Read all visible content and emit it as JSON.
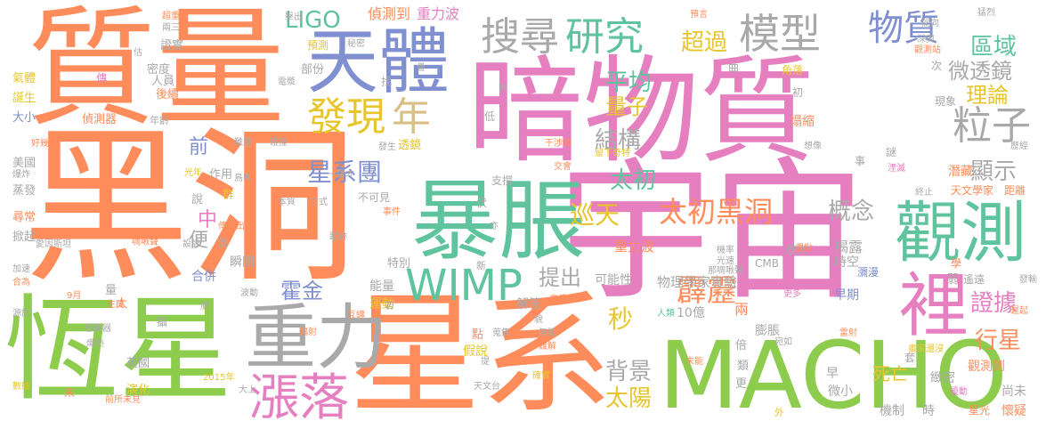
{
  "words": [
    {
      "text": "暗物質",
      "color": "#e57fc0"
    },
    {
      "text": "黑洞",
      "color": "#ff8c5a"
    },
    {
      "text": "質量",
      "color": "#ff8c5a"
    },
    {
      "text": "宇宙",
      "color": "#e57fc0"
    },
    {
      "text": "星系",
      "color": "#ff8c5a"
    },
    {
      "text": "恆星",
      "color": "#8ecc4e"
    },
    {
      "text": "MACHO",
      "color": "#8ecc4e"
    },
    {
      "text": "暴脹",
      "color": "#5fc49e"
    },
    {
      "text": "觀測",
      "color": "#5fc49e"
    },
    {
      "text": "天體",
      "color": "#7f8fcf"
    },
    {
      "text": "重力",
      "color": "#a9a9a9"
    },
    {
      "text": "裡",
      "color": "#e57fc0"
    },
    {
      "text": "漲落",
      "color": "#e57fc0"
    },
    {
      "text": "WIMP",
      "color": "#5fc49e"
    },
    {
      "text": "搜尋",
      "color": "#a9a9a9"
    },
    {
      "text": "研究",
      "color": "#5fc49e"
    },
    {
      "text": "模型",
      "color": "#a9a9a9"
    },
    {
      "text": "物質",
      "color": "#7f8fcf"
    },
    {
      "text": "發現",
      "color": "#e8c52d"
    },
    {
      "text": "年",
      "color": "#d9bf86"
    },
    {
      "text": "粒子",
      "color": "#a9a9a9"
    },
    {
      "text": "太初黑洞",
      "color": "#ff8c5a"
    },
    {
      "text": "霹靂",
      "color": "#ff8c5a"
    },
    {
      "text": "LIGO",
      "color": "#5fc49e"
    },
    {
      "text": "超過",
      "color": "#e8c52d"
    },
    {
      "text": "區域",
      "color": "#5fc49e"
    },
    {
      "text": "微透鏡",
      "color": "#a9a9a9"
    },
    {
      "text": "理論",
      "color": "#e8c52d"
    },
    {
      "text": "平均",
      "color": "#5fc49e"
    },
    {
      "text": "量子",
      "color": "#e8c52d"
    },
    {
      "text": "結構",
      "color": "#a9a9a9"
    },
    {
      "text": "太初",
      "color": "#5fc49e"
    },
    {
      "text": "星系團",
      "color": "#7f8fcf"
    },
    {
      "text": "巡天",
      "color": "#e8c52d"
    },
    {
      "text": "概念",
      "color": "#a9a9a9"
    },
    {
      "text": "顯示",
      "color": "#a9a9a9"
    },
    {
      "text": "證據",
      "color": "#e57fc0"
    },
    {
      "text": "行星",
      "color": "#ff8c5a"
    },
    {
      "text": "提出",
      "color": "#a9a9a9"
    },
    {
      "text": "霍金",
      "color": "#7f8fcf"
    },
    {
      "text": "秒",
      "color": "#e8c52d"
    },
    {
      "text": "背景",
      "color": "#a9a9a9"
    },
    {
      "text": "太陽",
      "color": "#e8c52d"
    },
    {
      "text": "前",
      "color": "#7f8fcf"
    },
    {
      "text": "中",
      "color": "#e57fc0"
    },
    {
      "text": "便",
      "color": "#a9a9a9"
    },
    {
      "text": "偵測到",
      "color": "#ff8c5a"
    },
    {
      "text": "重力波",
      "color": "#e57fc0"
    },
    {
      "text": "重力波",
      "color": "#ff8c5a"
    },
    {
      "text": "物理學家",
      "color": "#a9a9a9"
    },
    {
      "text": "實驗",
      "color": "#a9a9a9"
    },
    {
      "text": "可能性",
      "color": "#a9a9a9"
    },
    {
      "text": "能量",
      "color": "#a9a9a9"
    },
    {
      "text": "運動",
      "color": "#e8c52d"
    },
    {
      "text": "解答",
      "color": "#a9a9a9"
    },
    {
      "text": "瞬間",
      "color": "#a9a9a9"
    },
    {
      "text": "合併",
      "color": "#7f8fcf"
    },
    {
      "text": "天文學家",
      "color": "#ff8c5a"
    },
    {
      "text": "距離",
      "color": "#ff8c5a"
    },
    {
      "text": "潛藏",
      "color": "#ff8c5a"
    },
    {
      "text": "揭露",
      "color": "#a9a9a9"
    },
    {
      "text": "時空",
      "color": "#a9a9a9"
    },
    {
      "text": "放大",
      "color": "#a9a9a9"
    },
    {
      "text": "早期",
      "color": "#7f8fcf"
    },
    {
      "text": "膨脹",
      "color": "#a9a9a9"
    },
    {
      "text": "10億",
      "color": "#a9a9a9"
    },
    {
      "text": "兩",
      "color": "#ff8c5a"
    },
    {
      "text": "死亡",
      "color": "#e8c52d"
    },
    {
      "text": "微小",
      "color": "#a9a9a9"
    },
    {
      "text": "早",
      "color": "#a9a9a9"
    },
    {
      "text": "觀測到",
      "color": "#ff8c5a"
    },
    {
      "text": "尚未",
      "color": "#a9a9a9"
    },
    {
      "text": "懷疑",
      "color": "#ff8c5a"
    },
    {
      "text": "緻密",
      "color": "#a9a9a9"
    },
    {
      "text": "機制",
      "color": "#a9a9a9"
    },
    {
      "text": "時",
      "color": "#a9a9a9"
    },
    {
      "text": "氣體",
      "color": "#e8c52d"
    },
    {
      "text": "誕生",
      "color": "#e8c52d"
    },
    {
      "text": "大小",
      "color": "#7f8fcf"
    },
    {
      "text": "美國",
      "color": "#a9a9a9"
    },
    {
      "text": "蒸發",
      "color": "#a9a9a9"
    },
    {
      "text": "尋常",
      "color": "#ff8c5a"
    },
    {
      "text": "掀起",
      "color": "#a9a9a9"
    },
    {
      "text": "英國",
      "color": "#a9a9a9"
    },
    {
      "text": "演化",
      "color": "#e8c52d"
    },
    {
      "text": "偵測器",
      "color": "#ff8c5a"
    },
    {
      "text": "密度",
      "color": "#a9a9a9"
    },
    {
      "text": "人員",
      "color": "#a9a9a9"
    },
    {
      "text": "後續",
      "color": "#ff8c5a"
    },
    {
      "text": "證實",
      "color": "#a9a9a9"
    },
    {
      "text": "預測",
      "color": "#e8c52d"
    },
    {
      "text": "部份",
      "color": "#a9a9a9"
    },
    {
      "text": "作用",
      "color": "#a9a9a9"
    },
    {
      "text": "特別",
      "color": "#a9a9a9"
    },
    {
      "text": "透鏡",
      "color": "#e8c52d"
    },
    {
      "text": "不可見",
      "color": "#a9a9a9"
    },
    {
      "text": "支撐",
      "color": "#a9a9a9"
    },
    {
      "text": "假說",
      "color": "#e8c52d"
    },
    {
      "text": "現象",
      "color": "#a9a9a9"
    },
    {
      "text": "塌縮",
      "color": "#ff8c5a"
    },
    {
      "text": "角落",
      "color": "#e8c52d"
    },
    {
      "text": "瀰漫",
      "color": "#7f8fcf"
    },
    {
      "text": "星光",
      "color": "#ff8c5a"
    },
    {
      "text": "CMB",
      "color": "#a9a9a9"
    },
    {
      "text": "找",
      "color": "#a9a9a9"
    },
    {
      "text": "群",
      "color": "#e8c52d"
    },
    {
      "text": "說",
      "color": "#a9a9a9"
    },
    {
      "text": "含",
      "color": "#a9a9a9"
    },
    {
      "text": "傳",
      "color": "#e57fc0"
    },
    {
      "text": "量",
      "color": "#a9a9a9"
    },
    {
      "text": "太",
      "color": "#ff8c5a"
    },
    {
      "text": "攝",
      "color": "#a9a9a9"
    },
    {
      "text": "點",
      "color": "#ff8c5a"
    },
    {
      "text": "倍",
      "color": "#a9a9a9"
    },
    {
      "text": "類",
      "color": "#a9a9a9"
    },
    {
      "text": "更",
      "color": "#a9a9a9"
    },
    {
      "text": "套",
      "color": "#a9a9a9"
    },
    {
      "text": "弱",
      "color": "#a9a9a9"
    },
    {
      "text": "遙遠",
      "color": "#a9a9a9"
    },
    {
      "text": "學",
      "color": "#ff8c5a"
    },
    {
      "text": "次",
      "color": "#a9a9a9"
    },
    {
      "text": "曲",
      "color": "#a9a9a9"
    },
    {
      "text": "初",
      "color": "#a9a9a9"
    },
    {
      "text": "謎",
      "color": "#a9a9a9"
    },
    {
      "text": "事",
      "color": "#a9a9a9"
    },
    {
      "text": "伏",
      "color": "#a9a9a9"
    },
    {
      "text": "低",
      "color": "#a9a9a9"
    },
    {
      "text": "新",
      "color": "#a9a9a9"
    },
    {
      "text": "外",
      "color": "#e8c52d"
    },
    {
      "text": "未",
      "color": "#ff8c5a"
    },
    {
      "text": "年齡",
      "color": "#a9a9a9"
    },
    {
      "text": "發生",
      "color": "#a9a9a9"
    },
    {
      "text": "交會",
      "color": "#ff8c5a"
    },
    {
      "text": "奇特",
      "color": "#e8c52d"
    },
    {
      "text": "干涉儀",
      "color": "#ff8c5a"
    },
    {
      "text": "留下",
      "color": "#e8c52d"
    },
    {
      "text": "光年",
      "color": "#e8c52d"
    },
    {
      "text": "鳥叫",
      "color": "#a9a9a9"
    },
    {
      "text": "一聲才",
      "color": "#a9a9a9"
    },
    {
      "text": "本質",
      "color": "#a9a9a9"
    },
    {
      "text": "方式",
      "color": "#a9a9a9"
    },
    {
      "text": "事件",
      "color": "#ff8c5a"
    },
    {
      "text": "傳歌出去",
      "color": "#ff8c5a"
    },
    {
      "text": "設計",
      "color": "#a9a9a9"
    },
    {
      "text": "愛因斯坦",
      "color": "#a9a9a9"
    },
    {
      "text": "啁啾聲",
      "color": "#ff8c5a"
    },
    {
      "text": "蹤跡",
      "color": "#a9a9a9"
    },
    {
      "text": "波動",
      "color": "#a9a9a9"
    },
    {
      "text": "生成",
      "color": "#ff8c5a"
    },
    {
      "text": "9月",
      "color": "#ff8c5a"
    },
    {
      "text": "感測器",
      "color": "#a9a9a9"
    },
    {
      "text": "熾熱",
      "color": "#a9a9a9"
    },
    {
      "text": "前所未見",
      "color": "#ff8c5a"
    },
    {
      "text": "2015年",
      "color": "#e8c52d"
    },
    {
      "text": "大上",
      "color": "#a9a9a9"
    },
    {
      "text": "天文台",
      "color": "#a9a9a9"
    },
    {
      "text": "蒐集",
      "color": "#a9a9a9"
    },
    {
      "text": "無關",
      "color": "#a9a9a9"
    },
    {
      "text": "難解",
      "color": "#ff8c5a"
    },
    {
      "text": "充斥",
      "color": "#ff8c5a"
    },
    {
      "text": "互纏",
      "color": "#ff8c5a"
    },
    {
      "text": "機率",
      "color": "#a9a9a9"
    },
    {
      "text": "光速",
      "color": "#a9a9a9"
    },
    {
      "text": "那啁啾聲",
      "color": "#a9a9a9"
    },
    {
      "text": "更多",
      "color": "#e57fc0"
    },
    {
      "text": "重點",
      "color": "#ff8c5a"
    },
    {
      "text": "終止",
      "color": "#a9a9a9"
    },
    {
      "text": "湮滅",
      "color": "#e57fc0"
    },
    {
      "text": "想像",
      "color": "#a9a9a9"
    },
    {
      "text": "歷經",
      "color": "#a9a9a9"
    },
    {
      "text": "觀測站",
      "color": "#ff8c5a"
    },
    {
      "text": "深奧",
      "color": "#a9a9a9"
    },
    {
      "text": "猛烈",
      "color": "#a9a9a9"
    },
    {
      "text": "擺向",
      "color": "#a9a9a9"
    },
    {
      "text": "預言",
      "color": "#ff8c5a"
    },
    {
      "text": "秘密",
      "color": "#a9a9a9"
    },
    {
      "text": "超重",
      "color": "#ff8c5a"
    },
    {
      "text": "兩三",
      "color": "#a9a9a9"
    },
    {
      "text": "電漿",
      "color": "#a9a9a9"
    },
    {
      "text": "好幾",
      "color": "#ff8c5a"
    },
    {
      "text": "擊出",
      "color": "#a9a9a9"
    },
    {
      "text": "爆炸",
      "color": "#a9a9a9"
    },
    {
      "text": "碰撞",
      "color": "#a9a9a9"
    },
    {
      "text": "難題",
      "color": "#a9a9a9"
    },
    {
      "text": "加速",
      "color": "#a9a9a9"
    },
    {
      "text": "合為",
      "color": "#ff8c5a"
    },
    {
      "text": "源於",
      "color": "#a9a9a9"
    },
    {
      "text": "數據",
      "color": "#e8c52d"
    },
    {
      "text": "輻射",
      "color": "#ff8c5a"
    },
    {
      "text": "宛如",
      "color": "#a9a9a9"
    },
    {
      "text": "雷射",
      "color": "#ff8c5a"
    },
    {
      "text": "確實",
      "color": "#e8c52d"
    },
    {
      "text": "擾動",
      "color": "#e57fc0"
    },
    {
      "text": "遲起",
      "color": "#ff8c5a"
    },
    {
      "text": "發輸",
      "color": "#a9a9a9"
    },
    {
      "text": "畫家還沒",
      "color": "#e8c52d"
    },
    {
      "text": "人類",
      "color": "#5fc49e"
    },
    {
      "text": "脈",
      "color": "#a9a9a9"
    },
    {
      "text": "提",
      "color": "#a9a9a9"
    },
    {
      "text": "估",
      "color": "#a9a9a9"
    },
    {
      "text": "若",
      "color": "#a9a9a9"
    },
    {
      "text": "貌",
      "color": "#a9a9a9"
    },
    {
      "text": "舞",
      "color": "#a9a9a9"
    },
    {
      "text": "疊",
      "color": "#a9a9a9"
    },
    {
      "text": "亦",
      "color": "#a9a9a9"
    },
    {
      "text": "未能",
      "color": "#ff8c5a"
    }
  ]
}
